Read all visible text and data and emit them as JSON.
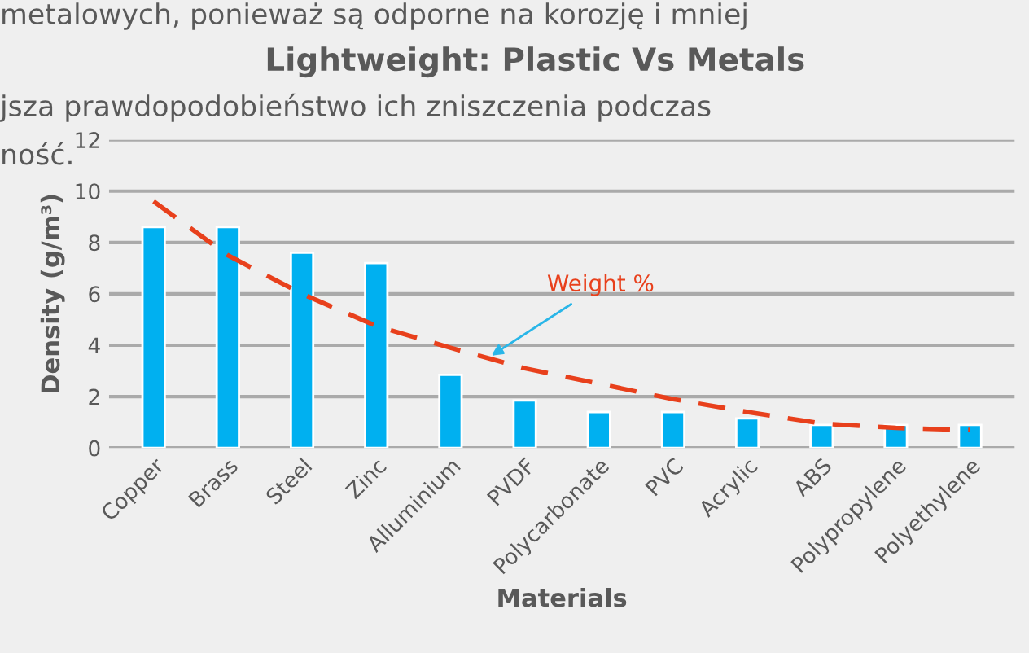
{
  "chart_data": {
    "type": "bar",
    "title": "Lightweight: Plastic Vs Metals",
    "xlabel": "Materials",
    "ylabel": "Density (g/m³)",
    "categories": [
      "Copper",
      "Brass",
      "Steel",
      "Zinc",
      "Alluminium",
      "PVDF",
      "Polycarbonate",
      "PVC",
      "Acrylic",
      "ABS",
      "Polypropylene",
      "Polyethylene"
    ],
    "series": [
      {
        "color": "#00b0f0",
        "values": [
          8.6,
          8.6,
          7.6,
          7.2,
          2.85,
          1.85,
          1.4,
          1.4,
          1.15,
          0.9,
          0.9,
          0.9
        ]
      },
      {
        "type": "line",
        "name": "Weight %",
        "color": "#e8401c",
        "line_style": "dashed",
        "values": [
          9.6,
          7.5,
          6.0,
          4.75,
          3.9,
          3.1,
          2.5,
          1.9,
          1.4,
          0.95,
          0.78,
          0.7
        ]
      }
    ],
    "ylim": [
      0,
      12
    ],
    "yticks": [
      0,
      2,
      4,
      6,
      8,
      10,
      12
    ],
    "grid": "y",
    "annotations": [
      "metalowych, ponieważ są odporne na korozję i mniej",
      "jsza prawdopodobieństwo ich zniszczenia podczas",
      "ność."
    ]
  }
}
